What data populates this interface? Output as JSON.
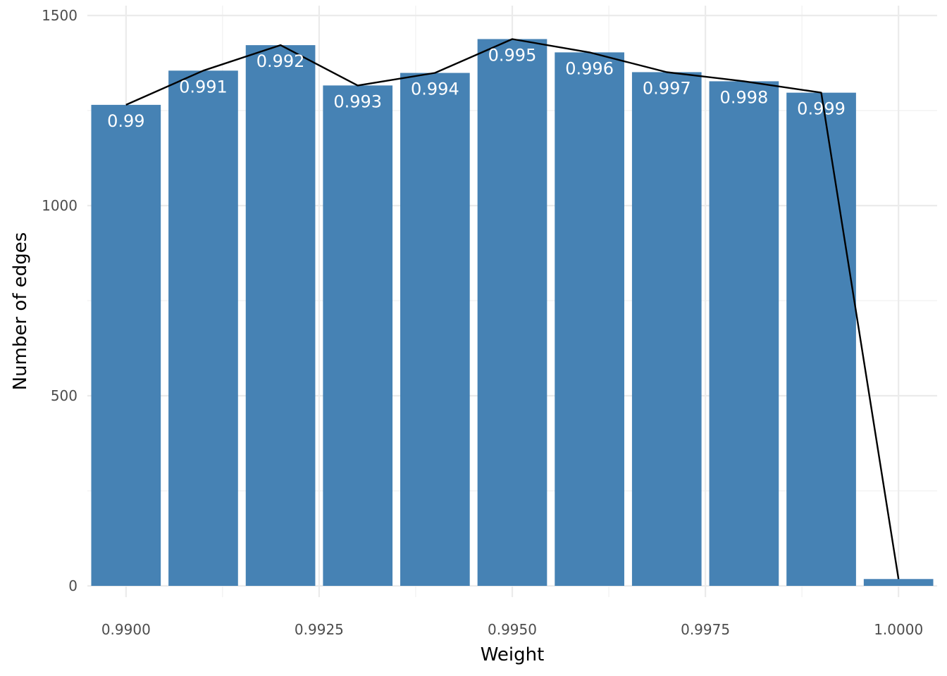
{
  "chart_data": {
    "type": "bar",
    "title": "",
    "xlabel": "Weight",
    "ylabel": "Number of edges",
    "xlim": [
      0.9895,
      1.0005
    ],
    "ylim": [
      0,
      1500
    ],
    "x_ticks": [
      "0.9900",
      "0.9925",
      "0.9950",
      "0.9975",
      "1.0000"
    ],
    "x_tick_values": [
      0.99,
      0.9925,
      0.995,
      0.9975,
      1.0
    ],
    "y_ticks": [
      0,
      500,
      1000,
      1500
    ],
    "grid": true,
    "bar_color": "#4682B4",
    "line_color": "#000000",
    "bars": [
      {
        "x": 0.99,
        "value": 1265,
        "label": "0.99"
      },
      {
        "x": 0.991,
        "value": 1355,
        "label": "0.991"
      },
      {
        "x": 0.992,
        "value": 1422,
        "label": "0.992"
      },
      {
        "x": 0.993,
        "value": 1316,
        "label": "0.993"
      },
      {
        "x": 0.994,
        "value": 1349,
        "label": "0.994"
      },
      {
        "x": 0.995,
        "value": 1438,
        "label": "0.995"
      },
      {
        "x": 0.996,
        "value": 1403,
        "label": "0.996"
      },
      {
        "x": 0.997,
        "value": 1351,
        "label": "0.997"
      },
      {
        "x": 0.998,
        "value": 1327,
        "label": "0.998"
      },
      {
        "x": 0.999,
        "value": 1297,
        "label": "0.999"
      },
      {
        "x": 1.0,
        "value": 18,
        "label": ""
      }
    ]
  }
}
